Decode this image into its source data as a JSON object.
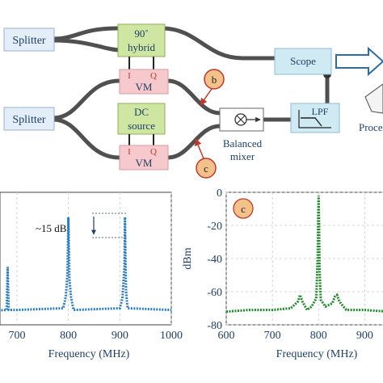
{
  "diagram": {
    "splitter_top": "Splitter",
    "splitter_bottom": "Splitter",
    "hybrid_line1": "90˚",
    "hybrid_line2": "hybrid",
    "vm_top": {
      "label": "VM",
      "i": "I",
      "q": "Q"
    },
    "dc_line1": "DC",
    "dc_line2": "source",
    "vm_bottom": {
      "label": "VM",
      "i": "I",
      "q": "Q"
    },
    "scope": "Scope",
    "lpf": "LPF",
    "mixer_line1": "Balanced",
    "mixer_line2": "mixer",
    "marker_b": "b",
    "marker_c": "c",
    "process_label": "Proce"
  },
  "colors": {
    "splitter_fill": "#e3eef8",
    "hybrid_fill": "#cfe6a3",
    "vm_fill": "#f6c9cc",
    "scope_fill": "#cfeaf3",
    "marker_fill": "#f5c18a",
    "marker_stroke": "#c0392b",
    "arrow_blue": "#2e6da4",
    "fiber": "#505050",
    "series_b": "#2a7bbf",
    "series_c": "#1f8a2a"
  },
  "chart_data": [
    {
      "type": "line",
      "panel": "b",
      "xlabel": "Frequency (MHz)",
      "xlim": [
        620,
        1000
      ],
      "xticks": [
        700,
        800,
        900,
        1000
      ],
      "ylim": [
        -80,
        0
      ],
      "annotation": "~15 dB",
      "series": [
        {
          "x": [
            620,
            680,
            681,
            682,
            683,
            684,
            700,
            790,
            795,
            798,
            799,
            800,
            801,
            802,
            805,
            810,
            900,
            905,
            909,
            910,
            911,
            912,
            915,
            1000
          ],
          "values": [
            -72,
            -71,
            -60,
            -45,
            -58,
            -71,
            -71,
            -70,
            -63,
            -50,
            -35,
            -15,
            -34,
            -52,
            -63,
            -71,
            -70,
            -64,
            -45,
            -15,
            -40,
            -60,
            -70,
            -71
          ]
        }
      ]
    },
    {
      "type": "line",
      "panel": "c",
      "ylabel": "dBm",
      "xlabel": "Frequency (MHz)",
      "xlim": [
        600,
        950
      ],
      "xticks": [
        600,
        700,
        800,
        900
      ],
      "ylim": [
        -80,
        0
      ],
      "yticks": [
        0,
        -20,
        -40,
        -60,
        -80
      ],
      "series": [
        {
          "x": [
            600,
            650,
            700,
            740,
            755,
            760,
            765,
            775,
            785,
            795,
            798,
            799,
            800,
            801,
            802,
            805,
            815,
            830,
            835,
            840,
            845,
            860,
            900,
            950
          ],
          "values": [
            -72,
            -71,
            -71,
            -70,
            -66,
            -62,
            -66,
            -71,
            -69,
            -64,
            -40,
            -15,
            -2,
            -18,
            -45,
            -65,
            -69,
            -67,
            -63,
            -62,
            -66,
            -71,
            -71,
            -72
          ]
        }
      ]
    }
  ]
}
